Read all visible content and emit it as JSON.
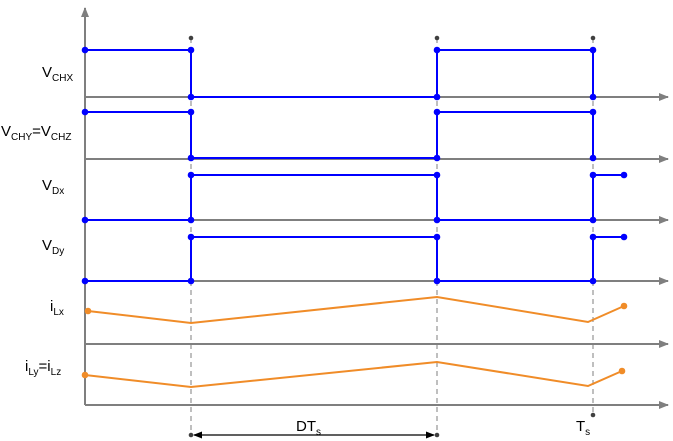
{
  "labels": {
    "vchx": {
      "main": "V",
      "sub": "CHX"
    },
    "vchy_vchz": {
      "main1": "V",
      "sub1": "CHY",
      "eq": "=V",
      "sub2": "CHZ"
    },
    "vdx": {
      "main": "V",
      "sub": "Dx"
    },
    "vdy": {
      "main": "V",
      "sub": "Dy"
    },
    "ilx": {
      "main": "i",
      "sub": "Lx"
    },
    "ily_ilz": {
      "main1": "i",
      "sub1": "Ly",
      "eq": "=i",
      "sub2": "Lz"
    },
    "dts": {
      "main": "DT",
      "sub": "s"
    },
    "ts": {
      "main": "T",
      "sub": "s"
    }
  },
  "colors": {
    "axis": "#7f7f7f",
    "logic": "#0000ff",
    "current": "#f08c28",
    "marker": "#404040"
  }
}
